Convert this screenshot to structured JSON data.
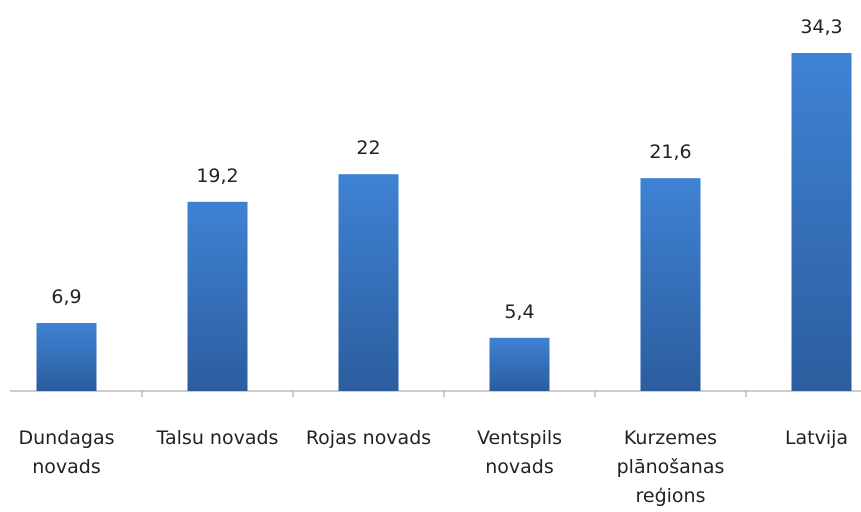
{
  "chart_data": {
    "type": "bar",
    "categories": [
      "Dundagas novads",
      "Talsu novads",
      "Rojas novads",
      "Ventspils novads",
      "Kurzemes plānošanas reģions",
      "Latvija"
    ],
    "values": [
      6.9,
      19.2,
      22,
      5.4,
      21.6,
      34.3
    ],
    "value_labels": [
      "6,9",
      "19,2",
      "22",
      "5,4",
      "21,6",
      "34,3"
    ],
    "color": "#3a78c6"
  }
}
